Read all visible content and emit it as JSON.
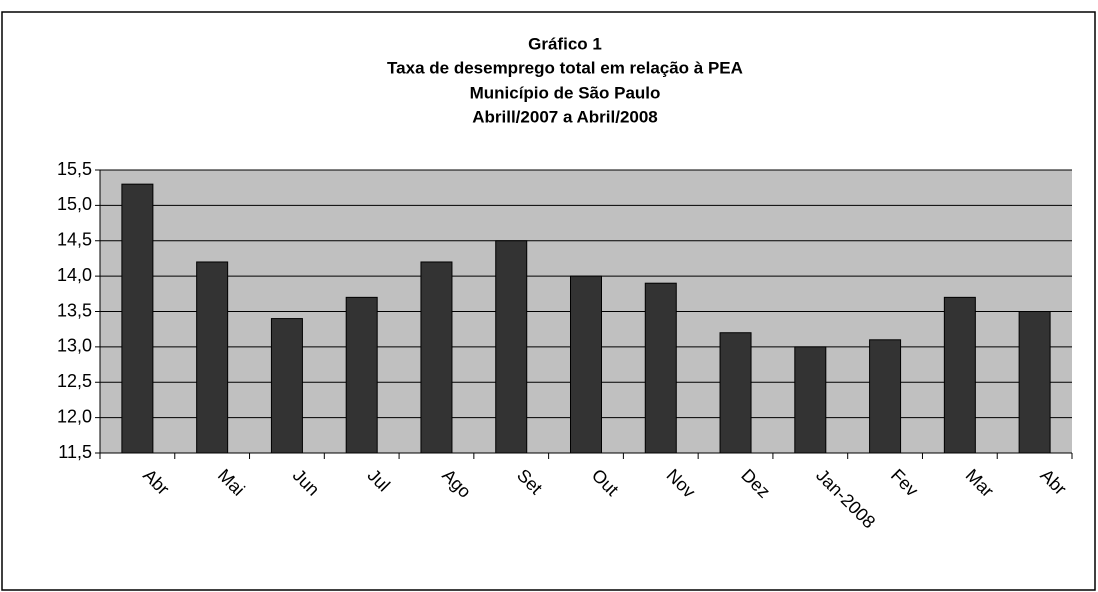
{
  "chart_data": {
    "type": "bar",
    "title": "Gráfico 1",
    "subtitle": [
      "Taxa de desemprego total em relação à PEA",
      "Município de São Paulo",
      "Abrill/2007 a Abril/2008"
    ],
    "categories": [
      "Abr",
      "Mai",
      "Jun",
      "Jul",
      "Ago",
      "Set",
      "Out",
      "Nov",
      "Dez",
      "Jan-2008",
      "Fev",
      "Mar",
      "Abr"
    ],
    "values": [
      15.3,
      14.2,
      13.4,
      13.7,
      14.2,
      14.5,
      14.0,
      13.9,
      13.2,
      13.0,
      13.1,
      13.7,
      13.5
    ],
    "color": "#333333",
    "ylim": [
      11.5,
      15.5
    ],
    "yticks": [
      {
        "value": 11.5,
        "label": "11,5"
      },
      {
        "value": 12.0,
        "label": "12,0"
      },
      {
        "value": 12.5,
        "label": "12,5"
      },
      {
        "value": 13.0,
        "label": "13,0"
      },
      {
        "value": 13.5,
        "label": "13,5"
      },
      {
        "value": 14.0,
        "label": "14,0"
      },
      {
        "value": 14.5,
        "label": "14,5"
      },
      {
        "value": 15.0,
        "label": "15,0"
      },
      {
        "value": 15.5,
        "label": "15,5"
      }
    ],
    "grid": true
  }
}
